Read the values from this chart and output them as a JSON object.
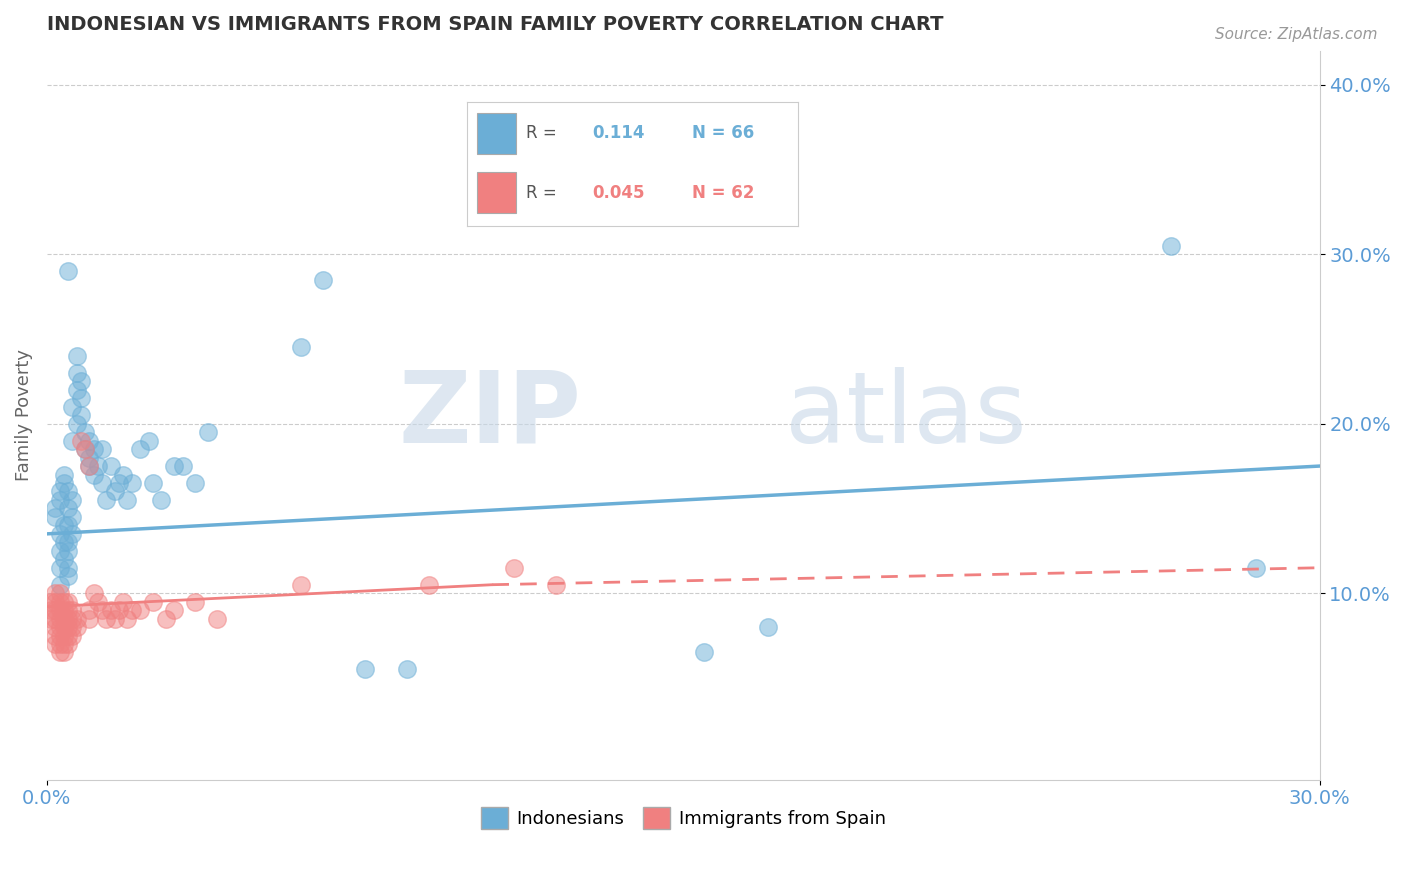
{
  "title": "INDONESIAN VS IMMIGRANTS FROM SPAIN FAMILY POVERTY CORRELATION CHART",
  "source_text": "Source: ZipAtlas.com",
  "ylabel": "Family Poverty",
  "xlim": [
    0.0,
    0.3
  ],
  "ylim": [
    -0.01,
    0.42
  ],
  "yticks": [
    0.1,
    0.2,
    0.3,
    0.4
  ],
  "ytick_labels": [
    "10.0%",
    "20.0%",
    "30.0%",
    "40.0%"
  ],
  "R_blue": 0.114,
  "N_blue": 66,
  "R_pink": 0.045,
  "N_pink": 62,
  "blue_color": "#6baed6",
  "pink_color": "#f08080",
  "blue_scatter": [
    [
      0.002,
      0.145
    ],
    [
      0.002,
      0.15
    ],
    [
      0.003,
      0.135
    ],
    [
      0.003,
      0.125
    ],
    [
      0.003,
      0.115
    ],
    [
      0.003,
      0.105
    ],
    [
      0.003,
      0.155
    ],
    [
      0.003,
      0.16
    ],
    [
      0.004,
      0.14
    ],
    [
      0.004,
      0.13
    ],
    [
      0.004,
      0.12
    ],
    [
      0.004,
      0.165
    ],
    [
      0.004,
      0.17
    ],
    [
      0.005,
      0.15
    ],
    [
      0.005,
      0.14
    ],
    [
      0.005,
      0.13
    ],
    [
      0.005,
      0.125
    ],
    [
      0.005,
      0.115
    ],
    [
      0.005,
      0.11
    ],
    [
      0.005,
      0.16
    ],
    [
      0.005,
      0.29
    ],
    [
      0.006,
      0.155
    ],
    [
      0.006,
      0.145
    ],
    [
      0.006,
      0.135
    ],
    [
      0.006,
      0.19
    ],
    [
      0.006,
      0.21
    ],
    [
      0.007,
      0.22
    ],
    [
      0.007,
      0.23
    ],
    [
      0.007,
      0.24
    ],
    [
      0.007,
      0.2
    ],
    [
      0.008,
      0.225
    ],
    [
      0.008,
      0.215
    ],
    [
      0.008,
      0.205
    ],
    [
      0.009,
      0.195
    ],
    [
      0.009,
      0.185
    ],
    [
      0.01,
      0.18
    ],
    [
      0.01,
      0.19
    ],
    [
      0.01,
      0.175
    ],
    [
      0.011,
      0.185
    ],
    [
      0.011,
      0.17
    ],
    [
      0.012,
      0.175
    ],
    [
      0.013,
      0.185
    ],
    [
      0.013,
      0.165
    ],
    [
      0.014,
      0.155
    ],
    [
      0.015,
      0.175
    ],
    [
      0.016,
      0.16
    ],
    [
      0.017,
      0.165
    ],
    [
      0.018,
      0.17
    ],
    [
      0.019,
      0.155
    ],
    [
      0.02,
      0.165
    ],
    [
      0.022,
      0.185
    ],
    [
      0.024,
      0.19
    ],
    [
      0.025,
      0.165
    ],
    [
      0.027,
      0.155
    ],
    [
      0.03,
      0.175
    ],
    [
      0.032,
      0.175
    ],
    [
      0.035,
      0.165
    ],
    [
      0.038,
      0.195
    ],
    [
      0.06,
      0.245
    ],
    [
      0.065,
      0.285
    ],
    [
      0.075,
      0.055
    ],
    [
      0.085,
      0.055
    ],
    [
      0.155,
      0.065
    ],
    [
      0.17,
      0.08
    ],
    [
      0.265,
      0.305
    ],
    [
      0.285,
      0.115
    ]
  ],
  "pink_scatter": [
    [
      0.001,
      0.095
    ],
    [
      0.001,
      0.09
    ],
    [
      0.001,
      0.085
    ],
    [
      0.002,
      0.1
    ],
    [
      0.002,
      0.095
    ],
    [
      0.002,
      0.09
    ],
    [
      0.002,
      0.085
    ],
    [
      0.002,
      0.08
    ],
    [
      0.002,
      0.075
    ],
    [
      0.002,
      0.07
    ],
    [
      0.003,
      0.1
    ],
    [
      0.003,
      0.095
    ],
    [
      0.003,
      0.09
    ],
    [
      0.003,
      0.085
    ],
    [
      0.003,
      0.08
    ],
    [
      0.003,
      0.075
    ],
    [
      0.003,
      0.07
    ],
    [
      0.003,
      0.065
    ],
    [
      0.004,
      0.095
    ],
    [
      0.004,
      0.09
    ],
    [
      0.004,
      0.085
    ],
    [
      0.004,
      0.08
    ],
    [
      0.004,
      0.075
    ],
    [
      0.004,
      0.07
    ],
    [
      0.004,
      0.065
    ],
    [
      0.005,
      0.095
    ],
    [
      0.005,
      0.09
    ],
    [
      0.005,
      0.085
    ],
    [
      0.005,
      0.08
    ],
    [
      0.005,
      0.075
    ],
    [
      0.005,
      0.07
    ],
    [
      0.006,
      0.09
    ],
    [
      0.006,
      0.085
    ],
    [
      0.006,
      0.08
    ],
    [
      0.006,
      0.075
    ],
    [
      0.007,
      0.085
    ],
    [
      0.007,
      0.08
    ],
    [
      0.008,
      0.19
    ],
    [
      0.009,
      0.185
    ],
    [
      0.01,
      0.175
    ],
    [
      0.01,
      0.09
    ],
    [
      0.01,
      0.085
    ],
    [
      0.011,
      0.1
    ],
    [
      0.012,
      0.095
    ],
    [
      0.013,
      0.09
    ],
    [
      0.014,
      0.085
    ],
    [
      0.015,
      0.09
    ],
    [
      0.016,
      0.085
    ],
    [
      0.017,
      0.09
    ],
    [
      0.018,
      0.095
    ],
    [
      0.019,
      0.085
    ],
    [
      0.02,
      0.09
    ],
    [
      0.022,
      0.09
    ],
    [
      0.025,
      0.095
    ],
    [
      0.028,
      0.085
    ],
    [
      0.03,
      0.09
    ],
    [
      0.035,
      0.095
    ],
    [
      0.04,
      0.085
    ],
    [
      0.06,
      0.105
    ],
    [
      0.09,
      0.105
    ],
    [
      0.11,
      0.115
    ],
    [
      0.12,
      0.105
    ]
  ],
  "watermark_zip": "ZIP",
  "watermark_atlas": "atlas",
  "background_color": "#ffffff",
  "grid_color": "#cccccc",
  "title_color": "#333333",
  "axis_label_color": "#666666",
  "tick_color": "#5b9bd5"
}
